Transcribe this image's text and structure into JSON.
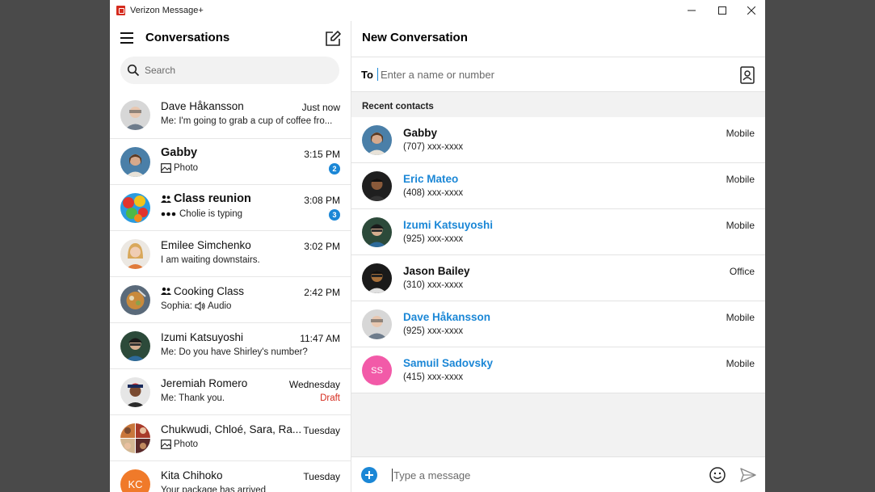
{
  "app": {
    "title": "Verizon Message+"
  },
  "left": {
    "title": "Conversations",
    "search_placeholder": "Search"
  },
  "conversations": [
    {
      "name": "Dave Håkansson",
      "time": "Just now",
      "preview": "Me: I'm going to grab a cup of coffee fro...",
      "bold": false
    },
    {
      "name": "Gabby",
      "time": "3:15 PM",
      "preview": "Photo",
      "badge": "2",
      "bold": true
    },
    {
      "name": "Class reunion",
      "time": "3:08 PM",
      "preview": "Cholie is typing",
      "badge": "3",
      "bold": true
    },
    {
      "name": "Emilee Simchenko",
      "time": "3:02 PM",
      "preview": "I am waiting downstairs.",
      "bold": false
    },
    {
      "name": "Cooking Class",
      "time": "2:42 PM",
      "preview_prefix": "Sophia:",
      "preview": "Audio",
      "bold": false
    },
    {
      "name": "Izumi Katsuyoshi",
      "time": "11:47 AM",
      "preview": "Me: Do you have Shirley's number?",
      "bold": false
    },
    {
      "name": "Jeremiah Romero",
      "time": "Wednesday",
      "preview": "Me: Thank you.",
      "draft": "Draft",
      "bold": false
    },
    {
      "name": "Chukwudi, Chloé, Sara, Ra...",
      "time": "Tuesday",
      "preview": "Photo",
      "bold": false
    },
    {
      "name": "Kita Chihoko",
      "time": "Tuesday",
      "preview": "Your package has arrived",
      "initials": "KC",
      "bold": false
    }
  ],
  "right": {
    "title": "New Conversation",
    "to_label": "To",
    "to_placeholder": "Enter a name or number",
    "recent_label": "Recent contacts",
    "message_placeholder": "Type a message"
  },
  "contacts": [
    {
      "name": "Gabby",
      "phone": "(707) xxx-xxxx",
      "type": "Mobile",
      "highlight": false
    },
    {
      "name": "Eric Mateo",
      "phone": "(408) xxx-xxxx",
      "type": "Mobile",
      "highlight": true
    },
    {
      "name": "Izumi Katsuyoshi",
      "phone": "(925) xxx-xxxx",
      "type": "Mobile",
      "highlight": true
    },
    {
      "name": "Jason Bailey",
      "phone": "(310) xxx-xxxx",
      "type": "Office",
      "highlight": false
    },
    {
      "name": "Dave Håkansson",
      "phone": "(925) xxx-xxxx",
      "type": "Mobile",
      "highlight": true
    },
    {
      "name": "Samuil Sadovsky",
      "phone": "(415) xxx-xxxx",
      "type": "Mobile",
      "highlight": true,
      "initials": "SS"
    }
  ],
  "colors": {
    "accent": "#1b87d6",
    "brand": "#d52b1e",
    "draft": "#d52b1e"
  }
}
